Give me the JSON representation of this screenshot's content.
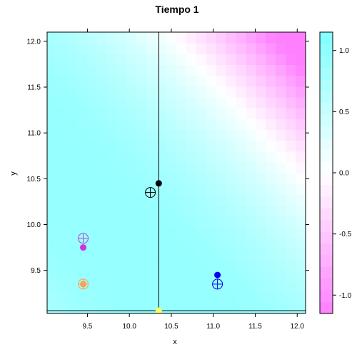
{
  "chart_data": {
    "type": "heatmap",
    "title": "Tiempo 1",
    "xlabel": "x",
    "ylabel": "y",
    "xlim": [
      9.02,
      12.1
    ],
    "ylim": [
      9.03,
      12.1
    ],
    "x_ticks": [
      9.5,
      10.0,
      10.5,
      11.0,
      11.5,
      12.0
    ],
    "x_tick_labels": [
      "9.5",
      "10.0",
      "10.5",
      "11.0",
      "11.5",
      "12.0"
    ],
    "y_ticks": [
      9.5,
      10.0,
      10.5,
      11.0,
      11.5,
      12.0
    ],
    "y_tick_labels": [
      "9.5",
      "10.0",
      "10.5",
      "11.0",
      "11.5",
      "12.0"
    ],
    "colorkey": {
      "range": [
        -1.15,
        1.15
      ],
      "ticks": [
        1.0,
        0.5,
        0.0,
        -0.5,
        -1.0
      ],
      "tick_labels": [
        "1.0",
        "0.5",
        "0.0",
        "-0.5",
        "-1.0"
      ],
      "low_color": "#ff80ff",
      "mid_color": "#ffffff",
      "high_color": "#80ffff"
    },
    "grid": false,
    "reference_lines": {
      "vertical_x": 10.35,
      "horizontal_y": 9.06,
      "color": "#000000"
    },
    "filled_points": [
      {
        "x": 10.35,
        "y": 10.45,
        "color": "#000000"
      },
      {
        "x": 9.45,
        "y": 9.75,
        "color": "#cc33dd"
      },
      {
        "x": 9.45,
        "y": 9.35,
        "color": "#ffa050"
      },
      {
        "x": 11.05,
        "y": 9.45,
        "color": "#0000ee"
      },
      {
        "x": 10.35,
        "y": 9.06,
        "color": "#ffff60"
      }
    ],
    "target_points": [
      {
        "x": 10.25,
        "y": 10.35,
        "color": "#000000"
      },
      {
        "x": 9.45,
        "y": 9.85,
        "color": "#bb44cc"
      },
      {
        "x": 9.45,
        "y": 9.35,
        "color": "#ffa050"
      },
      {
        "x": 11.05,
        "y": 9.35,
        "color": "#0000ee"
      }
    ]
  }
}
